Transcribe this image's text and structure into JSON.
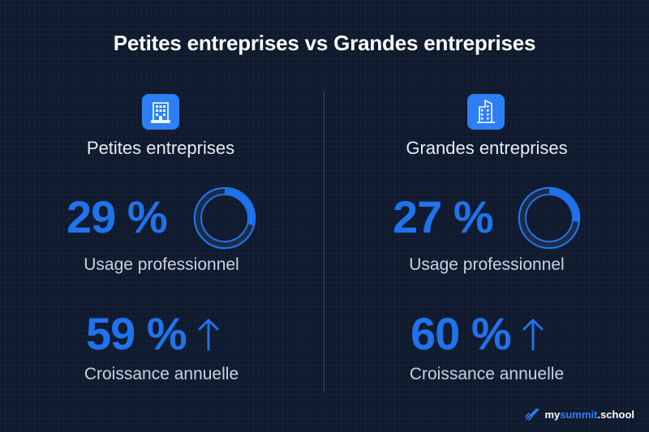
{
  "title": "Petites entreprises vs Grandes entreprises",
  "colors": {
    "background": "#0f1a2e",
    "accent": "#1f73ec",
    "ring_track": "#1e2b44"
  },
  "small": {
    "name": "Petites entreprises",
    "icon": "office-building-icon",
    "usage_value": "29 %",
    "usage_fraction": 0.29,
    "usage_label": "Usage professionnel",
    "growth_value": "59 %",
    "growth_label": "Croissance annuelle",
    "growth_icon": "arrow-up-icon"
  },
  "large": {
    "name": "Grandes entreprises",
    "icon": "skyscraper-icon",
    "usage_value": "27 %",
    "usage_fraction": 0.27,
    "usage_label": "Usage professionnel",
    "growth_value": "60 %",
    "growth_label": "Croissance annuelle",
    "growth_icon": "arrow-up-icon"
  },
  "brand": {
    "prefix": "my",
    "accent": "summit",
    "suffix": ".school",
    "icon": "rocket-icon"
  }
}
